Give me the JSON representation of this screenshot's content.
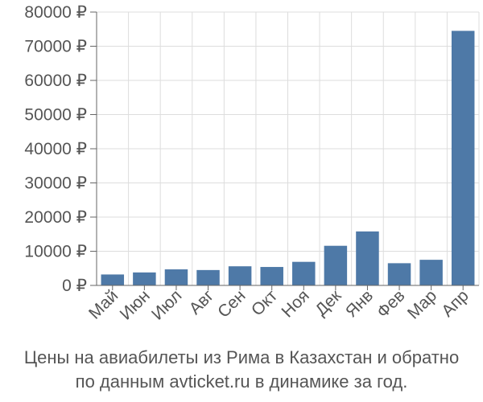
{
  "chart_data": {
    "type": "bar",
    "categories": [
      "Май",
      "Июн",
      "Июл",
      "Авг",
      "Сен",
      "Окт",
      "Ноя",
      "Дек",
      "Янв",
      "Фев",
      "Мар",
      "Апр"
    ],
    "values": [
      3200,
      3800,
      4700,
      4500,
      5600,
      5400,
      6900,
      11600,
      15800,
      6500,
      7500,
      74500
    ],
    "ylim": [
      0,
      80000
    ],
    "yticks": [
      0,
      10000,
      20000,
      30000,
      40000,
      50000,
      60000,
      70000,
      80000
    ],
    "ytick_labels": [
      "0 ₽",
      "10000 ₽",
      "20000 ₽",
      "30000 ₽",
      "40000 ₽",
      "50000 ₽",
      "60000 ₽",
      "70000 ₽",
      "80000 ₽"
    ],
    "grid": true,
    "bar_color": "#4e79a7"
  },
  "caption": {
    "line1": "Цены на авиабилеты из Рима в Казахстан и обратно",
    "line2": "по данным avticket.ru в динамике за год."
  }
}
